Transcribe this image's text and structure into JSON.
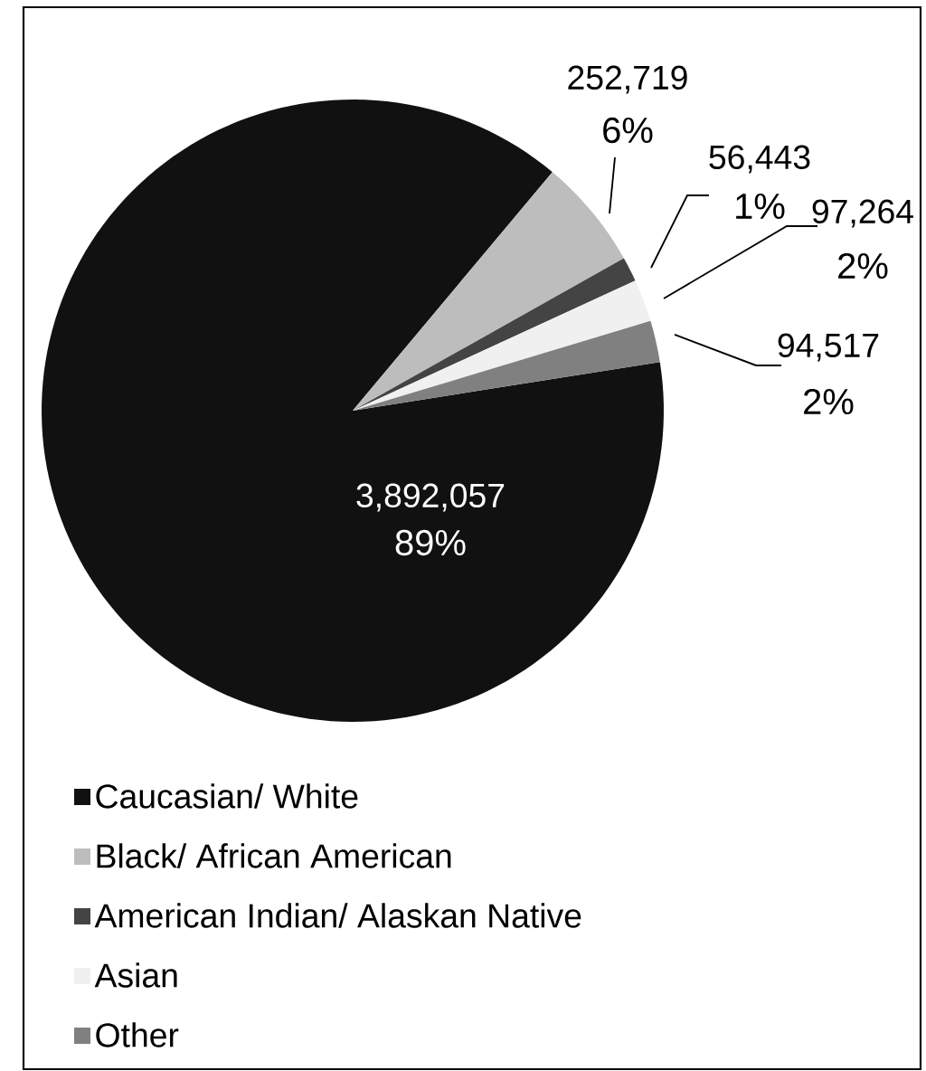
{
  "chart_data": {
    "type": "pie",
    "categories": [
      "Caucasian/ White",
      "Black/ African American",
      "American Indian/ Alaskan Native",
      "Asian",
      "Other"
    ],
    "values": [
      3892057,
      252719,
      56443,
      97264,
      94517
    ],
    "value_labels": [
      "3,892,057",
      "252,719",
      "56,443",
      "97,264",
      "94,517"
    ],
    "annotations": [
      "89%",
      "6%",
      "1%",
      "2%",
      "2%"
    ],
    "colors": [
      "#111111",
      "#bdbdbd",
      "#444444",
      "#f0f0f0",
      "#808080"
    ],
    "legend": "bottom"
  }
}
